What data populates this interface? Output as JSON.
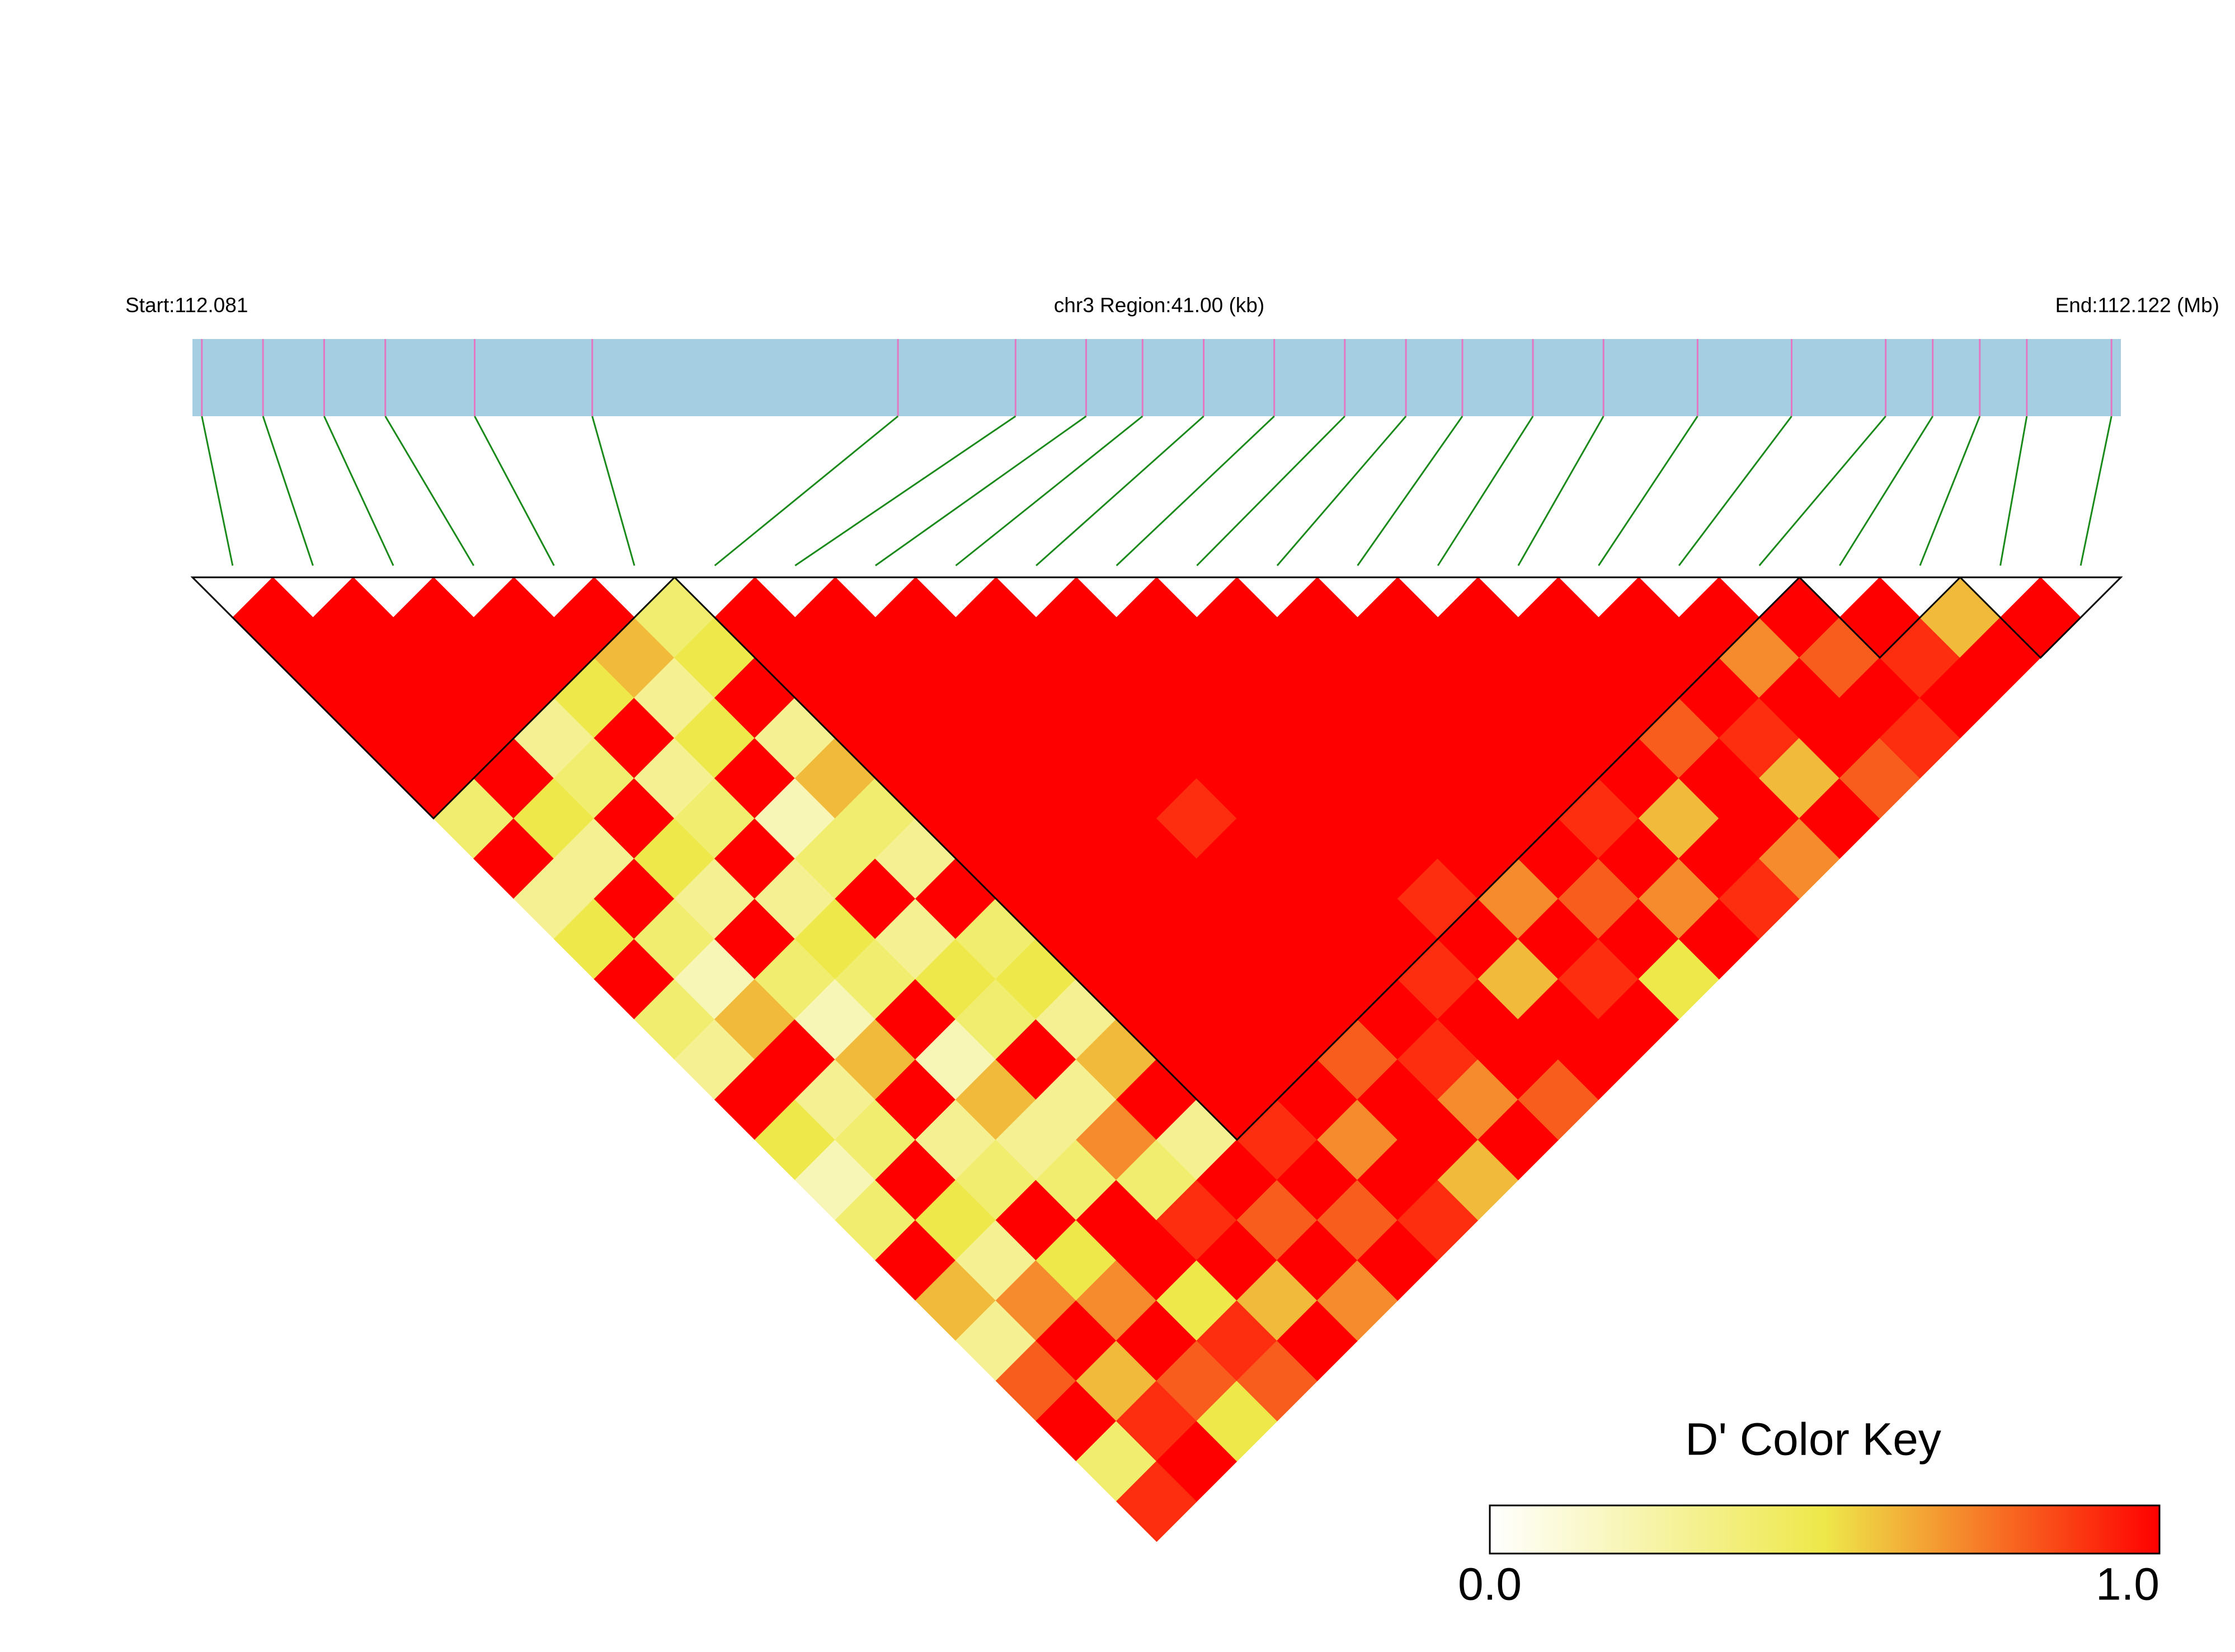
{
  "chart_data": {
    "type": "heatmap",
    "start_label": "Start:112.081",
    "region_label": "chr3 Region:41.00 (kb)",
    "end_label": "End:112.122 (Mb)",
    "xlim": [
      112.081,
      112.122
    ],
    "snp_positions": [
      112.0812,
      112.0825,
      112.0838,
      112.0851,
      112.087,
      112.0895,
      112.096,
      112.0985,
      112.1,
      112.1012,
      112.1025,
      112.104,
      112.1055,
      112.1068,
      112.108,
      112.1095,
      112.111,
      112.113,
      112.115,
      112.117,
      112.118,
      112.119,
      112.12,
      112.1218
    ],
    "dprime": [
      [
        1,
        1,
        1,
        1,
        1,
        0.4,
        1,
        0.3,
        0.5,
        1,
        0.4,
        0.3,
        1,
        0.5,
        0.2,
        0.4,
        1,
        0.6,
        0.3,
        0.8,
        1,
        0.4,
        0.9
      ],
      [
        1,
        1,
        1,
        1,
        1,
        0.5,
        0.3,
        1,
        0.4,
        0.2,
        0.6,
        1,
        0.3,
        0.4,
        1,
        0.5,
        0.3,
        0.7,
        1,
        0.6,
        0.9,
        1
      ],
      [
        1,
        1,
        1,
        0.3,
        0.4,
        1,
        0.5,
        0.3,
        1,
        0.4,
        0.2,
        0.6,
        1,
        0.3,
        0.4,
        1,
        0.5,
        0.7,
        1,
        0.8,
        0.5
      ],
      [
        1,
        1,
        0.5,
        1,
        0.3,
        0.4,
        1,
        0.3,
        0.5,
        0.4,
        1,
        0.2,
        0.6,
        0.3,
        0.4,
        1,
        1,
        0.5,
        0.9,
        0.8
      ],
      [
        1,
        0.6,
        0.3,
        0.5,
        1,
        0.2,
        0.4,
        1,
        0.3,
        0.5,
        0.4,
        1,
        0.3,
        0.7,
        0.4,
        0.9,
        1,
        0.6,
        1
      ],
      [
        0.4,
        0.5,
        1,
        0.3,
        0.6,
        0.4,
        0.3,
        1,
        0.4,
        0.5,
        0.3,
        0.6,
        1,
        0.3,
        1,
        0.8,
        1,
        0.7
      ],
      [
        1,
        1,
        1,
        1,
        1,
        1,
        1,
        1,
        1,
        1,
        1,
        1,
        1,
        0.9,
        1,
        0.8,
        1
      ],
      [
        1,
        1,
        1,
        1,
        1,
        1,
        1,
        1,
        1,
        1,
        1,
        1,
        1,
        0.7,
        1,
        0.9
      ],
      [
        1,
        1,
        1,
        1,
        1,
        1,
        1,
        1,
        1,
        1,
        1,
        0.8,
        1,
        1,
        0.6
      ],
      [
        1,
        1,
        1,
        1,
        1,
        0.9,
        1,
        1,
        1,
        1,
        1,
        0.9,
        0.7,
        1
      ],
      [
        1,
        1,
        1,
        1,
        1,
        1,
        1,
        1,
        1,
        0.9,
        1,
        1,
        0.8
      ],
      [
        1,
        1,
        1,
        1,
        1,
        1,
        1,
        0.9,
        1,
        0.6,
        1,
        1
      ],
      [
        1,
        1,
        1,
        1,
        1,
        1,
        1,
        0.7,
        1,
        0.9,
        1
      ],
      [
        1,
        1,
        1,
        1,
        1,
        1,
        1,
        0.8,
        1,
        0.5
      ],
      [
        1,
        1,
        1,
        1,
        1,
        0.9,
        1,
        0.7,
        1
      ],
      [
        1,
        1,
        1,
        1,
        1,
        0.6,
        1,
        0.9
      ],
      [
        1,
        1,
        1,
        0.8,
        1,
        1,
        0.7
      ],
      [
        1,
        1,
        1,
        0.9,
        0.6,
        1
      ],
      [
        1,
        0.7,
        1,
        1,
        0.8
      ],
      [
        1,
        0.8,
        1,
        0.9
      ],
      [
        1,
        0.9,
        1
      ],
      [
        0.6,
        1
      ],
      [
        1
      ]
    ],
    "blocks": [
      [
        0,
        5
      ],
      [
        6,
        19
      ],
      [
        20,
        21
      ],
      [
        22,
        23
      ]
    ],
    "colors": [
      "#ffffff",
      "#eee84a",
      "#ff0000"
    ],
    "key_title": "D' Color Key",
    "key_ticks": [
      {
        "value": 0,
        "label": "0.0"
      },
      {
        "value": 1,
        "label": "1.0"
      }
    ]
  }
}
